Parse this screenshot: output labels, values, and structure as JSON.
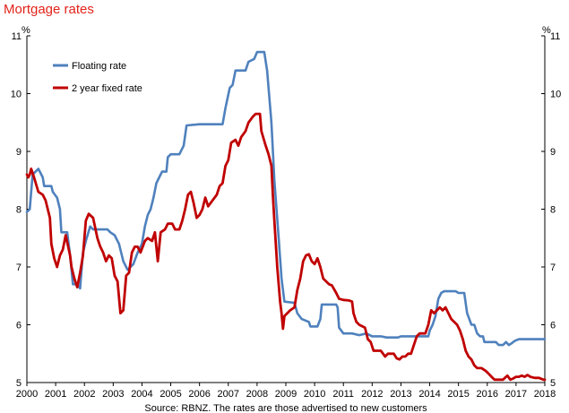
{
  "chart_data": {
    "type": "line",
    "title": "Mortgage rates",
    "ylabel_left": "%",
    "ylabel_right": "%",
    "ylim": [
      5,
      11
    ],
    "yticks": [
      5,
      6,
      7,
      8,
      9,
      10,
      11
    ],
    "xlim": [
      2000,
      2018
    ],
    "xticks": [
      "2000",
      "2001",
      "2002",
      "2003",
      "2004",
      "2005",
      "2006",
      "2007",
      "2008",
      "2009",
      "2010",
      "2011",
      "2012",
      "2013",
      "2014",
      "2015",
      "2016",
      "2017",
      "2018"
    ],
    "legend_position": "top-left",
    "source": "Source: RBNZ. The rates are those advertised to new customers",
    "series": [
      {
        "name": "Floating rate",
        "color": "#4f81bd",
        "points": [
          [
            2000.0,
            7.95
          ],
          [
            2000.1,
            8.0
          ],
          [
            2000.2,
            8.6
          ],
          [
            2000.4,
            8.7
          ],
          [
            2000.55,
            8.55
          ],
          [
            2000.6,
            8.4
          ],
          [
            2000.85,
            8.4
          ],
          [
            2000.9,
            8.3
          ],
          [
            2001.05,
            8.2
          ],
          [
            2001.15,
            8.0
          ],
          [
            2001.2,
            7.6
          ],
          [
            2001.4,
            7.6
          ],
          [
            2001.5,
            7.2
          ],
          [
            2001.6,
            6.7
          ],
          [
            2001.75,
            6.7
          ],
          [
            2001.85,
            6.63
          ],
          [
            2001.95,
            7.25
          ],
          [
            2002.05,
            7.45
          ],
          [
            2002.2,
            7.7
          ],
          [
            2002.3,
            7.65
          ],
          [
            2002.5,
            7.65
          ],
          [
            2002.8,
            7.65
          ],
          [
            2002.9,
            7.6
          ],
          [
            2003.05,
            7.55
          ],
          [
            2003.2,
            7.4
          ],
          [
            2003.35,
            7.1
          ],
          [
            2003.5,
            6.95
          ],
          [
            2003.7,
            7.05
          ],
          [
            2003.85,
            7.25
          ],
          [
            2004.0,
            7.4
          ],
          [
            2004.1,
            7.7
          ],
          [
            2004.2,
            7.9
          ],
          [
            2004.3,
            8.0
          ],
          [
            2004.4,
            8.2
          ],
          [
            2004.5,
            8.45
          ],
          [
            2004.6,
            8.55
          ],
          [
            2004.7,
            8.65
          ],
          [
            2004.85,
            8.65
          ],
          [
            2004.9,
            8.9
          ],
          [
            2005.0,
            8.95
          ],
          [
            2005.3,
            8.95
          ],
          [
            2005.45,
            9.1
          ],
          [
            2005.55,
            9.45
          ],
          [
            2006.0,
            9.47
          ],
          [
            2006.5,
            9.47
          ],
          [
            2006.8,
            9.47
          ],
          [
            2006.9,
            9.75
          ],
          [
            2007.05,
            10.1
          ],
          [
            2007.15,
            10.15
          ],
          [
            2007.25,
            10.4
          ],
          [
            2007.6,
            10.4
          ],
          [
            2007.7,
            10.55
          ],
          [
            2007.9,
            10.6
          ],
          [
            2008.0,
            10.72
          ],
          [
            2008.25,
            10.72
          ],
          [
            2008.35,
            10.4
          ],
          [
            2008.5,
            9.5
          ],
          [
            2008.6,
            8.5
          ],
          [
            2008.75,
            7.5
          ],
          [
            2008.85,
            6.8
          ],
          [
            2008.95,
            6.4
          ],
          [
            2009.3,
            6.38
          ],
          [
            2009.4,
            6.2
          ],
          [
            2009.55,
            6.1
          ],
          [
            2009.8,
            6.05
          ],
          [
            2009.85,
            5.97
          ],
          [
            2010.1,
            5.97
          ],
          [
            2010.2,
            6.1
          ],
          [
            2010.25,
            6.35
          ],
          [
            2010.75,
            6.35
          ],
          [
            2010.8,
            6.3
          ],
          [
            2010.85,
            5.95
          ],
          [
            2011.0,
            5.85
          ],
          [
            2011.3,
            5.85
          ],
          [
            2011.55,
            5.82
          ],
          [
            2011.8,
            5.85
          ],
          [
            2012.0,
            5.8
          ],
          [
            2012.3,
            5.8
          ],
          [
            2012.5,
            5.78
          ],
          [
            2012.9,
            5.78
          ],
          [
            2013.0,
            5.8
          ],
          [
            2013.5,
            5.8
          ],
          [
            2013.95,
            5.8
          ],
          [
            2014.0,
            5.9
          ],
          [
            2014.1,
            6.0
          ],
          [
            2014.2,
            6.15
          ],
          [
            2014.3,
            6.45
          ],
          [
            2014.4,
            6.55
          ],
          [
            2014.5,
            6.58
          ],
          [
            2014.9,
            6.58
          ],
          [
            2015.0,
            6.55
          ],
          [
            2015.2,
            6.55
          ],
          [
            2015.3,
            6.2
          ],
          [
            2015.45,
            6.0
          ],
          [
            2015.55,
            6.0
          ],
          [
            2015.65,
            5.85
          ],
          [
            2015.75,
            5.8
          ],
          [
            2015.85,
            5.8
          ],
          [
            2015.9,
            5.7
          ],
          [
            2016.1,
            5.7
          ],
          [
            2016.3,
            5.7
          ],
          [
            2016.4,
            5.65
          ],
          [
            2016.55,
            5.65
          ],
          [
            2016.65,
            5.7
          ],
          [
            2016.75,
            5.65
          ],
          [
            2016.85,
            5.68
          ],
          [
            2016.95,
            5.72
          ],
          [
            2017.1,
            5.75
          ],
          [
            2017.5,
            5.75
          ],
          [
            2017.75,
            5.75
          ],
          [
            2018.0,
            5.75
          ]
        ]
      },
      {
        "name": "2 year fixed rate",
        "color": "#c00000",
        "points": [
          [
            2000.0,
            8.6
          ],
          [
            2000.05,
            8.55
          ],
          [
            2000.1,
            8.6
          ],
          [
            2000.15,
            8.7
          ],
          [
            2000.25,
            8.55
          ],
          [
            2000.4,
            8.3
          ],
          [
            2000.55,
            8.25
          ],
          [
            2000.65,
            8.15
          ],
          [
            2000.8,
            7.85
          ],
          [
            2000.85,
            7.4
          ],
          [
            2000.95,
            7.15
          ],
          [
            2001.05,
            7.0
          ],
          [
            2001.15,
            7.2
          ],
          [
            2001.25,
            7.3
          ],
          [
            2001.35,
            7.55
          ],
          [
            2001.5,
            7.2
          ],
          [
            2001.55,
            7.0
          ],
          [
            2001.65,
            6.8
          ],
          [
            2001.75,
            6.65
          ],
          [
            2001.85,
            6.9
          ],
          [
            2001.95,
            7.2
          ],
          [
            2002.05,
            7.8
          ],
          [
            2002.15,
            7.92
          ],
          [
            2002.3,
            7.85
          ],
          [
            2002.45,
            7.5
          ],
          [
            2002.55,
            7.35
          ],
          [
            2002.65,
            7.25
          ],
          [
            2002.75,
            7.1
          ],
          [
            2002.85,
            7.2
          ],
          [
            2002.95,
            7.15
          ],
          [
            2003.05,
            6.85
          ],
          [
            2003.15,
            6.75
          ],
          [
            2003.25,
            6.2
          ],
          [
            2003.35,
            6.25
          ],
          [
            2003.45,
            6.85
          ],
          [
            2003.55,
            6.9
          ],
          [
            2003.65,
            7.25
          ],
          [
            2003.75,
            7.35
          ],
          [
            2003.85,
            7.35
          ],
          [
            2003.95,
            7.25
          ],
          [
            2004.1,
            7.45
          ],
          [
            2004.2,
            7.5
          ],
          [
            2004.35,
            7.45
          ],
          [
            2004.45,
            7.6
          ],
          [
            2004.55,
            7.1
          ],
          [
            2004.65,
            7.6
          ],
          [
            2004.8,
            7.65
          ],
          [
            2004.9,
            7.75
          ],
          [
            2005.05,
            7.75
          ],
          [
            2005.15,
            7.65
          ],
          [
            2005.3,
            7.65
          ],
          [
            2005.4,
            7.8
          ],
          [
            2005.5,
            8.0
          ],
          [
            2005.6,
            8.25
          ],
          [
            2005.7,
            8.3
          ],
          [
            2005.8,
            8.1
          ],
          [
            2005.9,
            7.85
          ],
          [
            2006.0,
            7.9
          ],
          [
            2006.1,
            8.0
          ],
          [
            2006.2,
            8.2
          ],
          [
            2006.3,
            8.05
          ],
          [
            2006.45,
            8.15
          ],
          [
            2006.6,
            8.25
          ],
          [
            2006.7,
            8.4
          ],
          [
            2006.8,
            8.45
          ],
          [
            2006.9,
            8.75
          ],
          [
            2007.0,
            8.85
          ],
          [
            2007.1,
            9.15
          ],
          [
            2007.25,
            9.2
          ],
          [
            2007.35,
            9.1
          ],
          [
            2007.45,
            9.25
          ],
          [
            2007.6,
            9.35
          ],
          [
            2007.7,
            9.5
          ],
          [
            2007.85,
            9.6
          ],
          [
            2007.95,
            9.65
          ],
          [
            2008.1,
            9.65
          ],
          [
            2008.15,
            9.35
          ],
          [
            2008.3,
            9.1
          ],
          [
            2008.4,
            8.95
          ],
          [
            2008.5,
            8.75
          ],
          [
            2008.55,
            8.25
          ],
          [
            2008.6,
            7.8
          ],
          [
            2008.65,
            7.4
          ],
          [
            2008.7,
            7.0
          ],
          [
            2008.75,
            6.7
          ],
          [
            2008.8,
            6.4
          ],
          [
            2008.85,
            6.2
          ],
          [
            2008.9,
            5.93
          ],
          [
            2008.95,
            6.15
          ],
          [
            2009.05,
            6.2
          ],
          [
            2009.15,
            6.25
          ],
          [
            2009.3,
            6.3
          ],
          [
            2009.4,
            6.6
          ],
          [
            2009.5,
            6.8
          ],
          [
            2009.6,
            7.1
          ],
          [
            2009.7,
            7.2
          ],
          [
            2009.8,
            7.22
          ],
          [
            2009.9,
            7.1
          ],
          [
            2010.0,
            7.05
          ],
          [
            2010.1,
            7.15
          ],
          [
            2010.2,
            7.0
          ],
          [
            2010.3,
            6.8
          ],
          [
            2010.4,
            6.75
          ],
          [
            2010.5,
            6.7
          ],
          [
            2010.6,
            6.68
          ],
          [
            2010.75,
            6.55
          ],
          [
            2010.85,
            6.45
          ],
          [
            2011.0,
            6.43
          ],
          [
            2011.2,
            6.42
          ],
          [
            2011.3,
            6.4
          ],
          [
            2011.35,
            6.2
          ],
          [
            2011.45,
            6.05
          ],
          [
            2011.55,
            6.0
          ],
          [
            2011.75,
            5.95
          ],
          [
            2011.85,
            5.75
          ],
          [
            2011.95,
            5.7
          ],
          [
            2012.05,
            5.55
          ],
          [
            2012.15,
            5.55
          ],
          [
            2012.3,
            5.55
          ],
          [
            2012.45,
            5.45
          ],
          [
            2012.55,
            5.5
          ],
          [
            2012.65,
            5.5
          ],
          [
            2012.75,
            5.5
          ],
          [
            2012.85,
            5.42
          ],
          [
            2012.95,
            5.4
          ],
          [
            2013.05,
            5.45
          ],
          [
            2013.15,
            5.45
          ],
          [
            2013.25,
            5.5
          ],
          [
            2013.35,
            5.5
          ],
          [
            2013.45,
            5.65
          ],
          [
            2013.55,
            5.8
          ],
          [
            2013.65,
            5.85
          ],
          [
            2013.75,
            5.85
          ],
          [
            2013.85,
            5.85
          ],
          [
            2013.95,
            6.0
          ],
          [
            2014.05,
            6.25
          ],
          [
            2014.15,
            6.2
          ],
          [
            2014.25,
            6.25
          ],
          [
            2014.35,
            6.3
          ],
          [
            2014.45,
            6.25
          ],
          [
            2014.55,
            6.3
          ],
          [
            2014.65,
            6.2
          ],
          [
            2014.75,
            6.1
          ],
          [
            2014.85,
            6.05
          ],
          [
            2014.95,
            6.0
          ],
          [
            2015.05,
            5.9
          ],
          [
            2015.15,
            5.75
          ],
          [
            2015.25,
            5.55
          ],
          [
            2015.35,
            5.45
          ],
          [
            2015.45,
            5.4
          ],
          [
            2015.55,
            5.3
          ],
          [
            2015.65,
            5.25
          ],
          [
            2015.8,
            5.25
          ],
          [
            2015.95,
            5.2
          ],
          [
            2016.05,
            5.15
          ],
          [
            2016.15,
            5.1
          ],
          [
            2016.25,
            5.05
          ],
          [
            2016.4,
            5.05
          ],
          [
            2016.55,
            5.05
          ],
          [
            2016.65,
            5.1
          ],
          [
            2016.7,
            5.12
          ],
          [
            2016.8,
            5.05
          ],
          [
            2016.9,
            5.07
          ],
          [
            2017.0,
            5.1
          ],
          [
            2017.1,
            5.1
          ],
          [
            2017.2,
            5.12
          ],
          [
            2017.3,
            5.1
          ],
          [
            2017.4,
            5.13
          ],
          [
            2017.5,
            5.1
          ],
          [
            2017.65,
            5.08
          ],
          [
            2017.8,
            5.08
          ],
          [
            2017.95,
            5.05
          ],
          [
            2018.0,
            5.05
          ]
        ]
      }
    ]
  }
}
